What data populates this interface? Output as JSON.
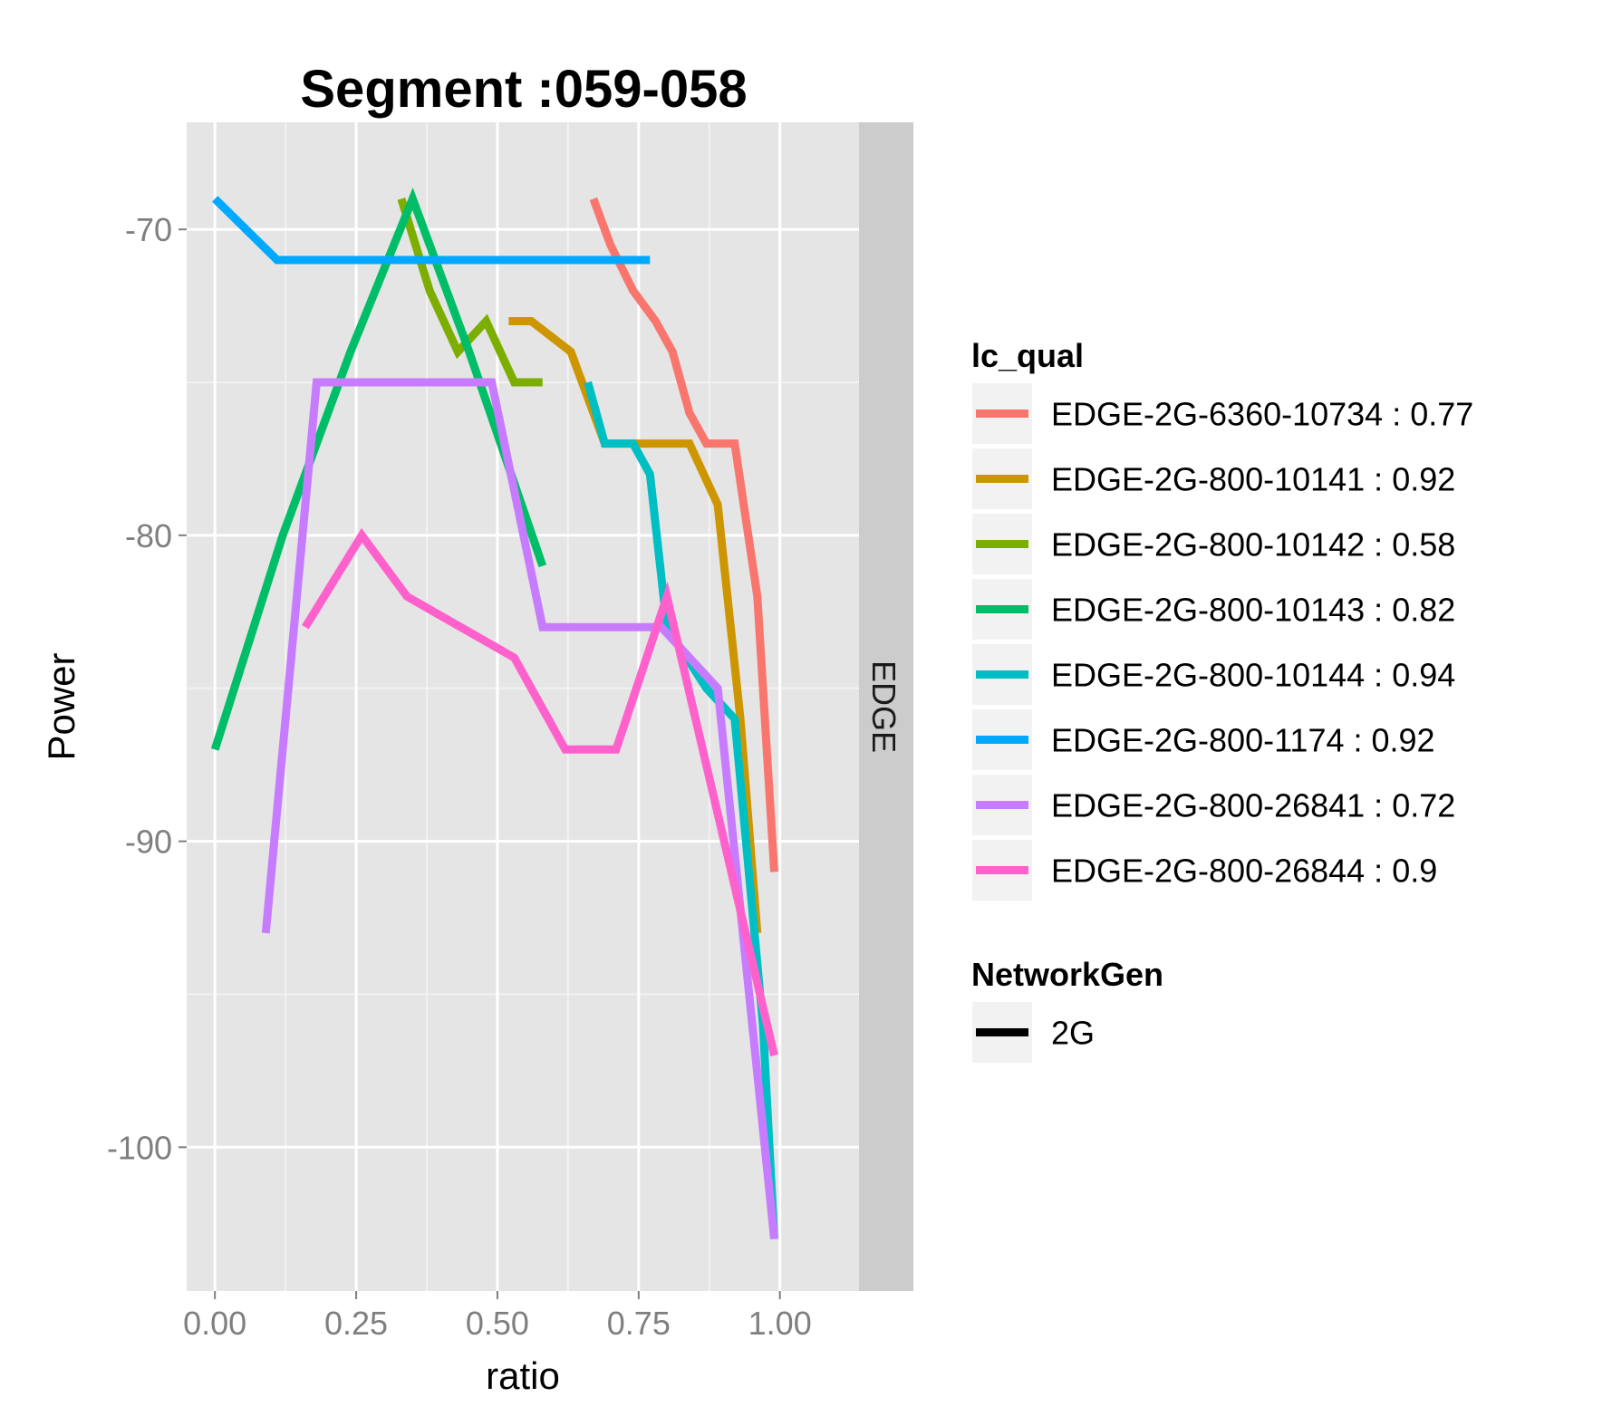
{
  "chart_data": {
    "type": "line",
    "title": "Segment :059-058",
    "xlabel": "ratio",
    "ylabel": "Power",
    "xlim": [
      -0.05,
      1.14
    ],
    "ylim": [
      -104.7,
      -66.5
    ],
    "x_ticks": [
      0.0,
      0.25,
      0.5,
      0.75,
      1.0
    ],
    "x_tick_labels": [
      "0.00",
      "0.25",
      "0.50",
      "0.75",
      "1.00"
    ],
    "y_ticks": [
      -70,
      -80,
      -90,
      -100
    ],
    "y_tick_labels": [
      "-70",
      "-80",
      "-90",
      "-100"
    ],
    "facet_label": "EDGE",
    "grid": true,
    "legend_position": "right",
    "legends": [
      {
        "title": "lc_qual",
        "entries": [
          {
            "label": "EDGE-2G-6360-10734 : 0.77",
            "color": "#F8766D"
          },
          {
            "label": "EDGE-2G-800-10141 : 0.92",
            "color": "#CD9600"
          },
          {
            "label": "EDGE-2G-800-10142 : 0.58",
            "color": "#7CAE00"
          },
          {
            "label": "EDGE-2G-800-10143 : 0.82",
            "color": "#00BE67"
          },
          {
            "label": "EDGE-2G-800-10144 : 0.94",
            "color": "#00BFC4"
          },
          {
            "label": "EDGE-2G-800-1174 : 0.92",
            "color": "#00A9FF"
          },
          {
            "label": "EDGE-2G-800-26841 : 0.72",
            "color": "#C77CFF"
          },
          {
            "label": "EDGE-2G-800-26844 : 0.9",
            "color": "#FF61CC"
          }
        ]
      },
      {
        "title": "NetworkGen",
        "entries": [
          {
            "label": "2G",
            "color": "#000000"
          }
        ]
      }
    ],
    "series": [
      {
        "name": "EDGE-2G-6360-10734 : 0.77",
        "color": "#F8766D",
        "points": [
          [
            0.67,
            -69
          ],
          [
            0.7,
            -70.5
          ],
          [
            0.74,
            -72
          ],
          [
            0.78,
            -73
          ],
          [
            0.81,
            -74
          ],
          [
            0.84,
            -76
          ],
          [
            0.87,
            -77
          ],
          [
            0.92,
            -77
          ],
          [
            0.96,
            -82
          ],
          [
            0.99,
            -91
          ]
        ]
      },
      {
        "name": "EDGE-2G-800-10141 : 0.92",
        "color": "#CD9600",
        "points": [
          [
            0.52,
            -73
          ],
          [
            0.56,
            -73
          ],
          [
            0.63,
            -74
          ],
          [
            0.69,
            -77
          ],
          [
            0.75,
            -77
          ],
          [
            0.84,
            -77
          ],
          [
            0.89,
            -79
          ],
          [
            0.93,
            -86
          ],
          [
            0.96,
            -93
          ]
        ]
      },
      {
        "name": "EDGE-2G-800-10142 : 0.58",
        "color": "#7CAE00",
        "points": [
          [
            0.33,
            -69
          ],
          [
            0.38,
            -72
          ],
          [
            0.43,
            -74
          ],
          [
            0.48,
            -73
          ],
          [
            0.53,
            -75
          ],
          [
            0.58,
            -75
          ]
        ]
      },
      {
        "name": "EDGE-2G-800-10143 : 0.82",
        "color": "#00BE67",
        "points": [
          [
            0.0,
            -87
          ],
          [
            0.12,
            -80
          ],
          [
            0.24,
            -74
          ],
          [
            0.35,
            -69
          ],
          [
            0.45,
            -74
          ],
          [
            0.58,
            -81
          ]
        ]
      },
      {
        "name": "EDGE-2G-800-10144 : 0.94",
        "color": "#00BFC4",
        "points": [
          [
            0.66,
            -75
          ],
          [
            0.69,
            -77
          ],
          [
            0.74,
            -77
          ],
          [
            0.77,
            -78
          ],
          [
            0.8,
            -83
          ],
          [
            0.87,
            -85
          ],
          [
            0.92,
            -86
          ],
          [
            0.97,
            -96
          ],
          [
            0.99,
            -103
          ]
        ]
      },
      {
        "name": "EDGE-2G-800-1174 : 0.92",
        "color": "#00A9FF",
        "points": [
          [
            0.0,
            -69
          ],
          [
            0.11,
            -71
          ],
          [
            0.77,
            -71
          ]
        ]
      },
      {
        "name": "EDGE-2G-800-26841 : 0.72",
        "color": "#C77CFF",
        "points": [
          [
            0.09,
            -93
          ],
          [
            0.18,
            -75
          ],
          [
            0.49,
            -75
          ],
          [
            0.58,
            -83
          ],
          [
            0.79,
            -83
          ],
          [
            0.89,
            -85
          ],
          [
            0.99,
            -103
          ]
        ]
      },
      {
        "name": "EDGE-2G-800-26844 : 0.9",
        "color": "#FF61CC",
        "points": [
          [
            0.16,
            -83
          ],
          [
            0.26,
            -80
          ],
          [
            0.34,
            -82
          ],
          [
            0.53,
            -84
          ],
          [
            0.62,
            -87
          ],
          [
            0.71,
            -87
          ],
          [
            0.8,
            -82
          ],
          [
            0.99,
            -97
          ]
        ]
      }
    ]
  }
}
